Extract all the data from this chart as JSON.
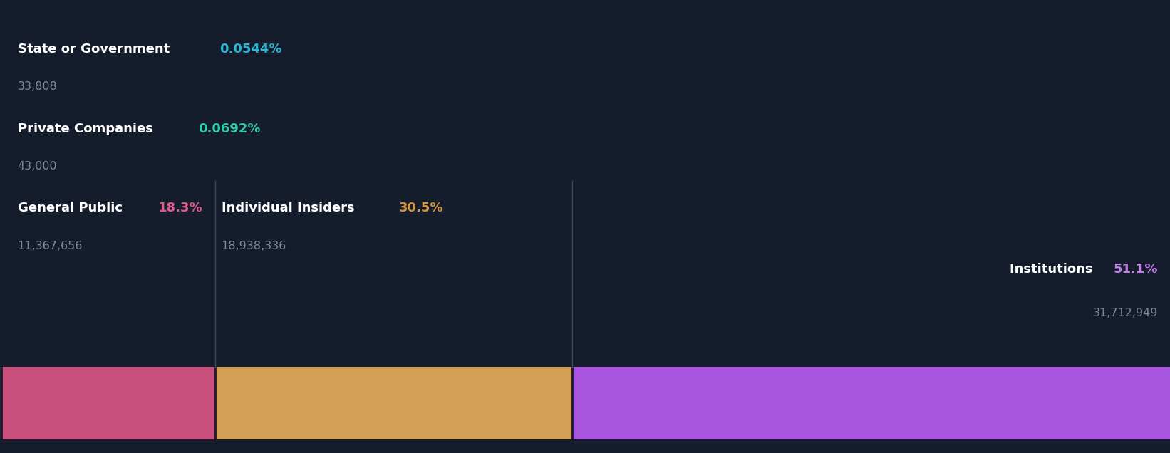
{
  "background_color": "#151c2c",
  "segments": [
    {
      "name": "State or Government",
      "pct": 0.0544,
      "pct_label": "0.0544%",
      "value_label": "33,808",
      "color": "#c94f7c",
      "pct_color": "#29b6d5",
      "label_align": "left"
    },
    {
      "name": "Private Companies",
      "pct": 0.0692,
      "pct_label": "0.0692%",
      "value_label": "43,000",
      "color": "#c94f7c",
      "pct_color": "#2dcdb0",
      "label_align": "left"
    },
    {
      "name": "General Public",
      "pct": 18.3,
      "pct_label": "18.3%",
      "value_label": "11,367,656",
      "color": "#c94f7c",
      "pct_color": "#e05b8b",
      "label_align": "left"
    },
    {
      "name": "Individual Insiders",
      "pct": 30.5,
      "pct_label": "30.5%",
      "value_label": "18,938,336",
      "color": "#d4a057",
      "pct_color": "#d4943a",
      "label_align": "left"
    },
    {
      "name": "Institutions",
      "pct": 51.1,
      "pct_label": "51.1%",
      "value_label": "31,712,949",
      "color": "#a855e0",
      "pct_color": "#c47fe8",
      "label_align": "right"
    }
  ],
  "name_fontsize": 13,
  "pct_fontsize": 13,
  "value_fontsize": 11.5,
  "value_color": "#7a8a9a",
  "bar_bottom": 0.03,
  "bar_height": 0.16
}
